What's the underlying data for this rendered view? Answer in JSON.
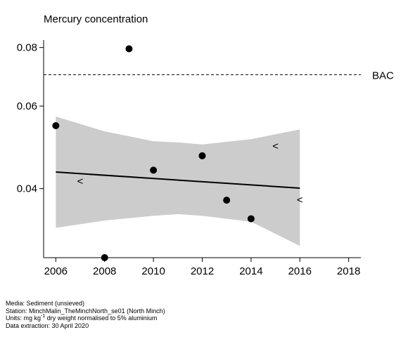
{
  "chart_data": {
    "type": "scatter",
    "title": "Mercury concentration",
    "x_ticks": [
      2006,
      2008,
      2010,
      2012,
      2014,
      2016,
      2018
    ],
    "y_ticks": [
      0.04,
      0.06,
      0.08
    ],
    "y_tick_labels": [
      "0.04",
      "0.06",
      "0.08"
    ],
    "xlim": [
      2005.5,
      2018.5
    ],
    "ylim": [
      0.0285,
      0.083
    ],
    "y_scale": "log",
    "points": [
      {
        "x": 2006,
        "y": 0.0545
      },
      {
        "x": 2008,
        "y": 0.0285
      },
      {
        "x": 2009,
        "y": 0.0795
      },
      {
        "x": 2010,
        "y": 0.0438
      },
      {
        "x": 2012,
        "y": 0.047
      },
      {
        "x": 2013,
        "y": 0.0378
      },
      {
        "x": 2014,
        "y": 0.0345
      }
    ],
    "less_than_points": [
      {
        "x": 2007,
        "y": 0.0415,
        "symbol": "<"
      },
      {
        "x": 2015,
        "y": 0.0493,
        "symbol": "<"
      },
      {
        "x": 2016,
        "y": 0.0379,
        "symbol": "<"
      }
    ],
    "trend_line": [
      {
        "x": 2006,
        "y": 0.0434
      },
      {
        "x": 2016,
        "y": 0.0401
      }
    ],
    "confidence_band": {
      "x": [
        2006,
        2008,
        2010,
        2011,
        2012,
        2014,
        2016
      ],
      "upper": [
        0.057,
        0.053,
        0.0505,
        0.0502,
        0.0497,
        0.051,
        0.0535
      ],
      "lower": [
        0.033,
        0.0342,
        0.035,
        0.0353,
        0.035,
        0.034,
        0.0302
      ]
    },
    "reference_line": {
      "label": "BAC",
      "y": 0.07,
      "style": "dashed"
    },
    "grid": false,
    "colors": {
      "band": "#cccccc",
      "points": "#000000",
      "line": "#000000"
    }
  },
  "footer": {
    "media": "Media: Sediment (unsieved)",
    "station": "Station: MinchMalin_TheMinchNorth_se01 (North Minch)",
    "units_prefix": "Units:  mg kg",
    "units_sup": "-1",
    "units_suffix": " dry weight normalised to 5% aluminium",
    "extraction": "Data extraction: 30 April 2020"
  }
}
